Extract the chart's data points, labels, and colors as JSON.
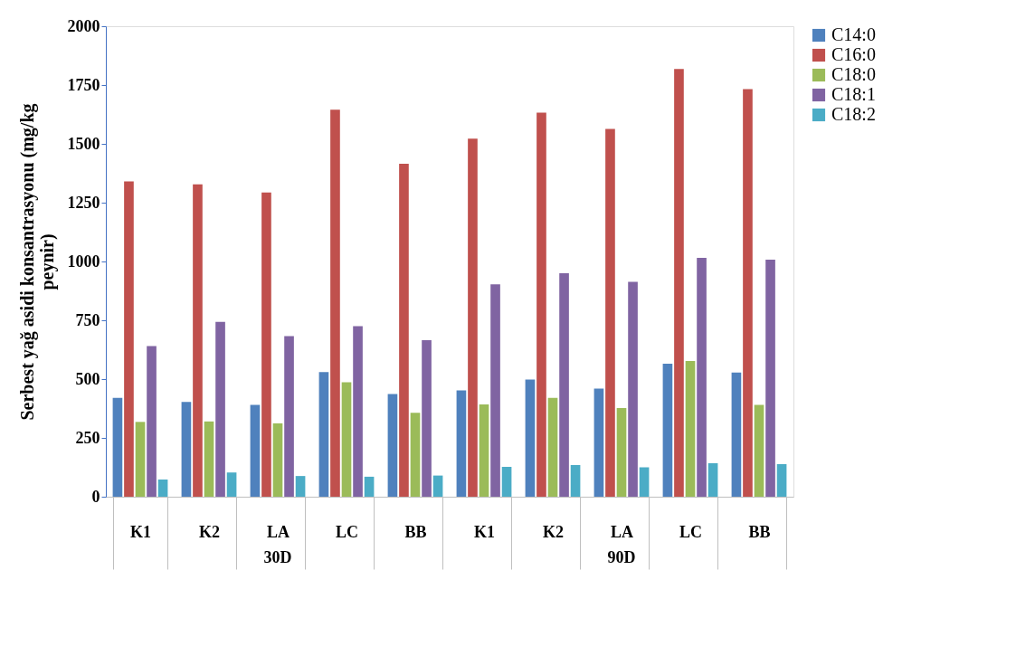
{
  "chart_data": {
    "type": "bar",
    "categories": [
      "K1",
      "K2",
      "LA",
      "LC",
      "BB",
      "K1",
      "K2",
      "LA",
      "LC",
      "BB"
    ],
    "ylabel": "Serbest yağ asidi konsantrasyonu (mg/kg peynir)",
    "annotations": [
      "30D",
      "90D"
    ],
    "series": [
      {
        "name": "C14:0",
        "color": "#4f81bd",
        "values": [
          420,
          403,
          390,
          530,
          437,
          452,
          498,
          460,
          565,
          528
        ]
      },
      {
        "name": "C16:0",
        "color": "#c0504d",
        "values": [
          1340,
          1328,
          1293,
          1645,
          1415,
          1522,
          1633,
          1563,
          1818,
          1733
        ]
      },
      {
        "name": "C18:0",
        "color": "#9bbb59",
        "values": [
          318,
          320,
          312,
          487,
          357,
          392,
          420,
          377,
          577,
          390
        ]
      },
      {
        "name": "C18:1",
        "color": "#8064a2",
        "values": [
          640,
          743,
          683,
          725,
          665,
          903,
          950,
          913,
          1015,
          1008
        ]
      },
      {
        "name": "C18:2",
        "color": "#4bacc6",
        "values": [
          73,
          103,
          88,
          85,
          90,
          127,
          135,
          125,
          142,
          138
        ]
      }
    ],
    "ylim": [
      0,
      2000
    ],
    "yticks": [
      0,
      250,
      500,
      750,
      1000,
      1250,
      1500,
      1750,
      2000
    ],
    "grid": false,
    "legend": "right"
  }
}
